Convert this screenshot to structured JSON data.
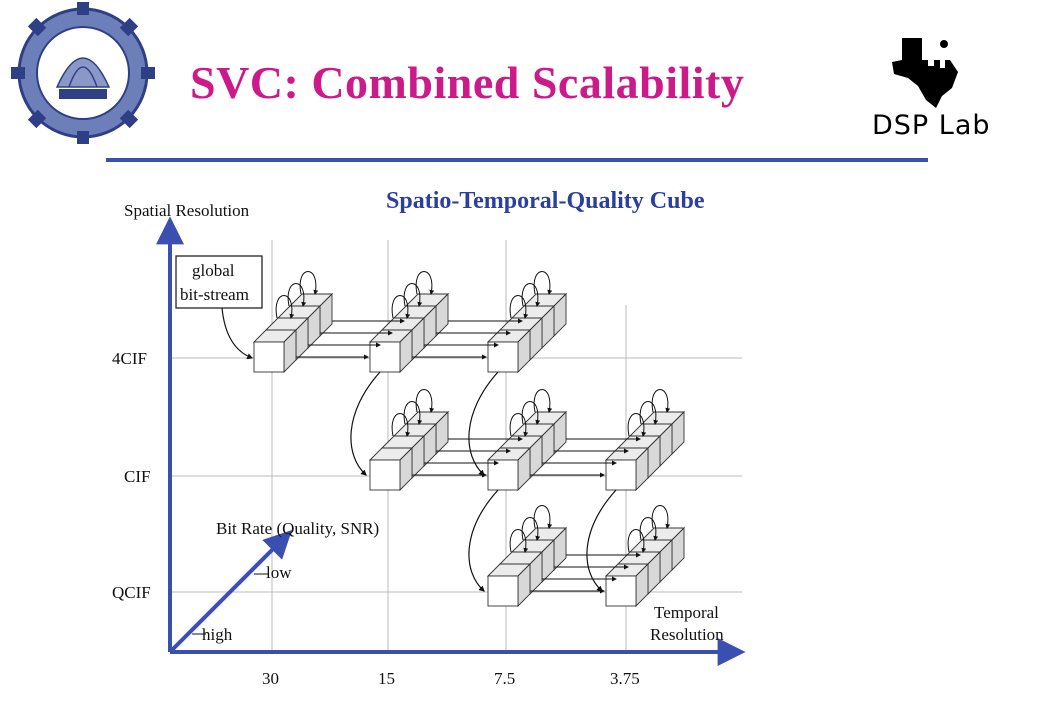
{
  "header": {
    "title": "SVC: Combined Scalability",
    "logo_right_text": "DSP Lab"
  },
  "diagram": {
    "subtitle": "Spatio-Temporal-Quality Cube",
    "y_axis_label": "Spatial Resolution",
    "callout_line1": "global",
    "callout_line2": "bit-stream",
    "spatial_levels": [
      "4CIF",
      "CIF",
      "QCIF"
    ],
    "temporal_levels": [
      "30",
      "15",
      "7.5",
      "3.75"
    ],
    "x_axis_label_line1": "Temporal",
    "x_axis_label_line2": "Resolution",
    "depth_axis_label": "Bit Rate (Quality, SNR)",
    "depth_low": "low",
    "depth_high": "high",
    "colors": {
      "title": "#cc1a8a",
      "subtitle": "#2b3f9e",
      "axis": "#3a4fb0",
      "rule": "#3a4fb0"
    }
  }
}
